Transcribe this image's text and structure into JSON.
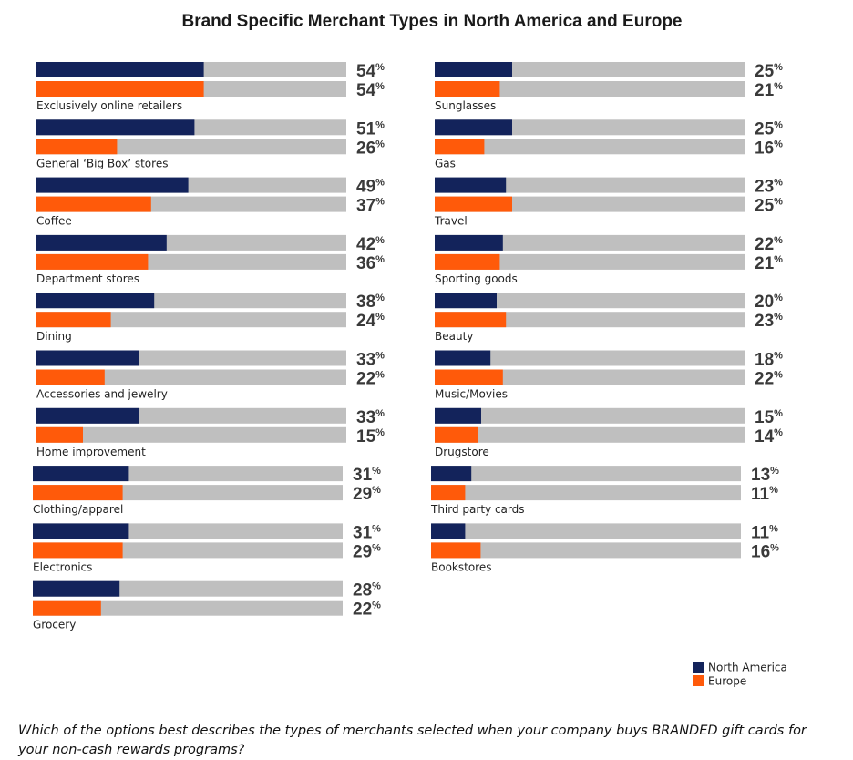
{
  "chart_data": {
    "type": "bar",
    "orientation": "horizontal",
    "title": "Brand Specific Merchant Types in North America and Europe",
    "value_suffix": "%",
    "xlim": [
      0,
      100
    ],
    "series": [
      {
        "name": "North America",
        "color": "#13235b"
      },
      {
        "name": "Europe",
        "color": "#ff5a0a"
      }
    ],
    "track_color": "#bfbfbf",
    "legend_position": "bottom-right",
    "categories": [
      {
        "name": "Exclusively online retailers",
        "north_america": 54,
        "europe": 54
      },
      {
        "name": "General ‘Big Box’ stores",
        "north_america": 51,
        "europe": 26
      },
      {
        "name": "Coffee",
        "north_america": 49,
        "europe": 37
      },
      {
        "name": "Department stores",
        "north_america": 42,
        "europe": 36
      },
      {
        "name": "Dining",
        "north_america": 38,
        "europe": 24
      },
      {
        "name": "Accessories and jewelry",
        "north_america": 33,
        "europe": 22
      },
      {
        "name": "Home improvement",
        "north_america": 33,
        "europe": 15
      },
      {
        "name": "Clothing/apparel",
        "north_america": 31,
        "europe": 29
      },
      {
        "name": "Electronics",
        "north_america": 31,
        "europe": 29
      },
      {
        "name": "Grocery",
        "north_america": 28,
        "europe": 22
      },
      {
        "name": "Sunglasses",
        "north_america": 25,
        "europe": 21
      },
      {
        "name": "Gas",
        "north_america": 25,
        "europe": 16
      },
      {
        "name": "Travel",
        "north_america": 23,
        "europe": 25
      },
      {
        "name": "Sporting goods",
        "north_america": 22,
        "europe": 21
      },
      {
        "name": "Beauty",
        "north_america": 20,
        "europe": 23
      },
      {
        "name": "Music/Movies",
        "north_america": 18,
        "europe": 22
      },
      {
        "name": "Drugstore",
        "north_america": 15,
        "europe": 14
      },
      {
        "name": "Third party cards",
        "north_america": 13,
        "europe": 11
      },
      {
        "name": "Bookstores",
        "north_america": 11,
        "europe": 16
      }
    ]
  },
  "question": "Which of the options best describes the types of merchants selected when your company buys BRANDED gift cards for your non-cash rewards programs?"
}
